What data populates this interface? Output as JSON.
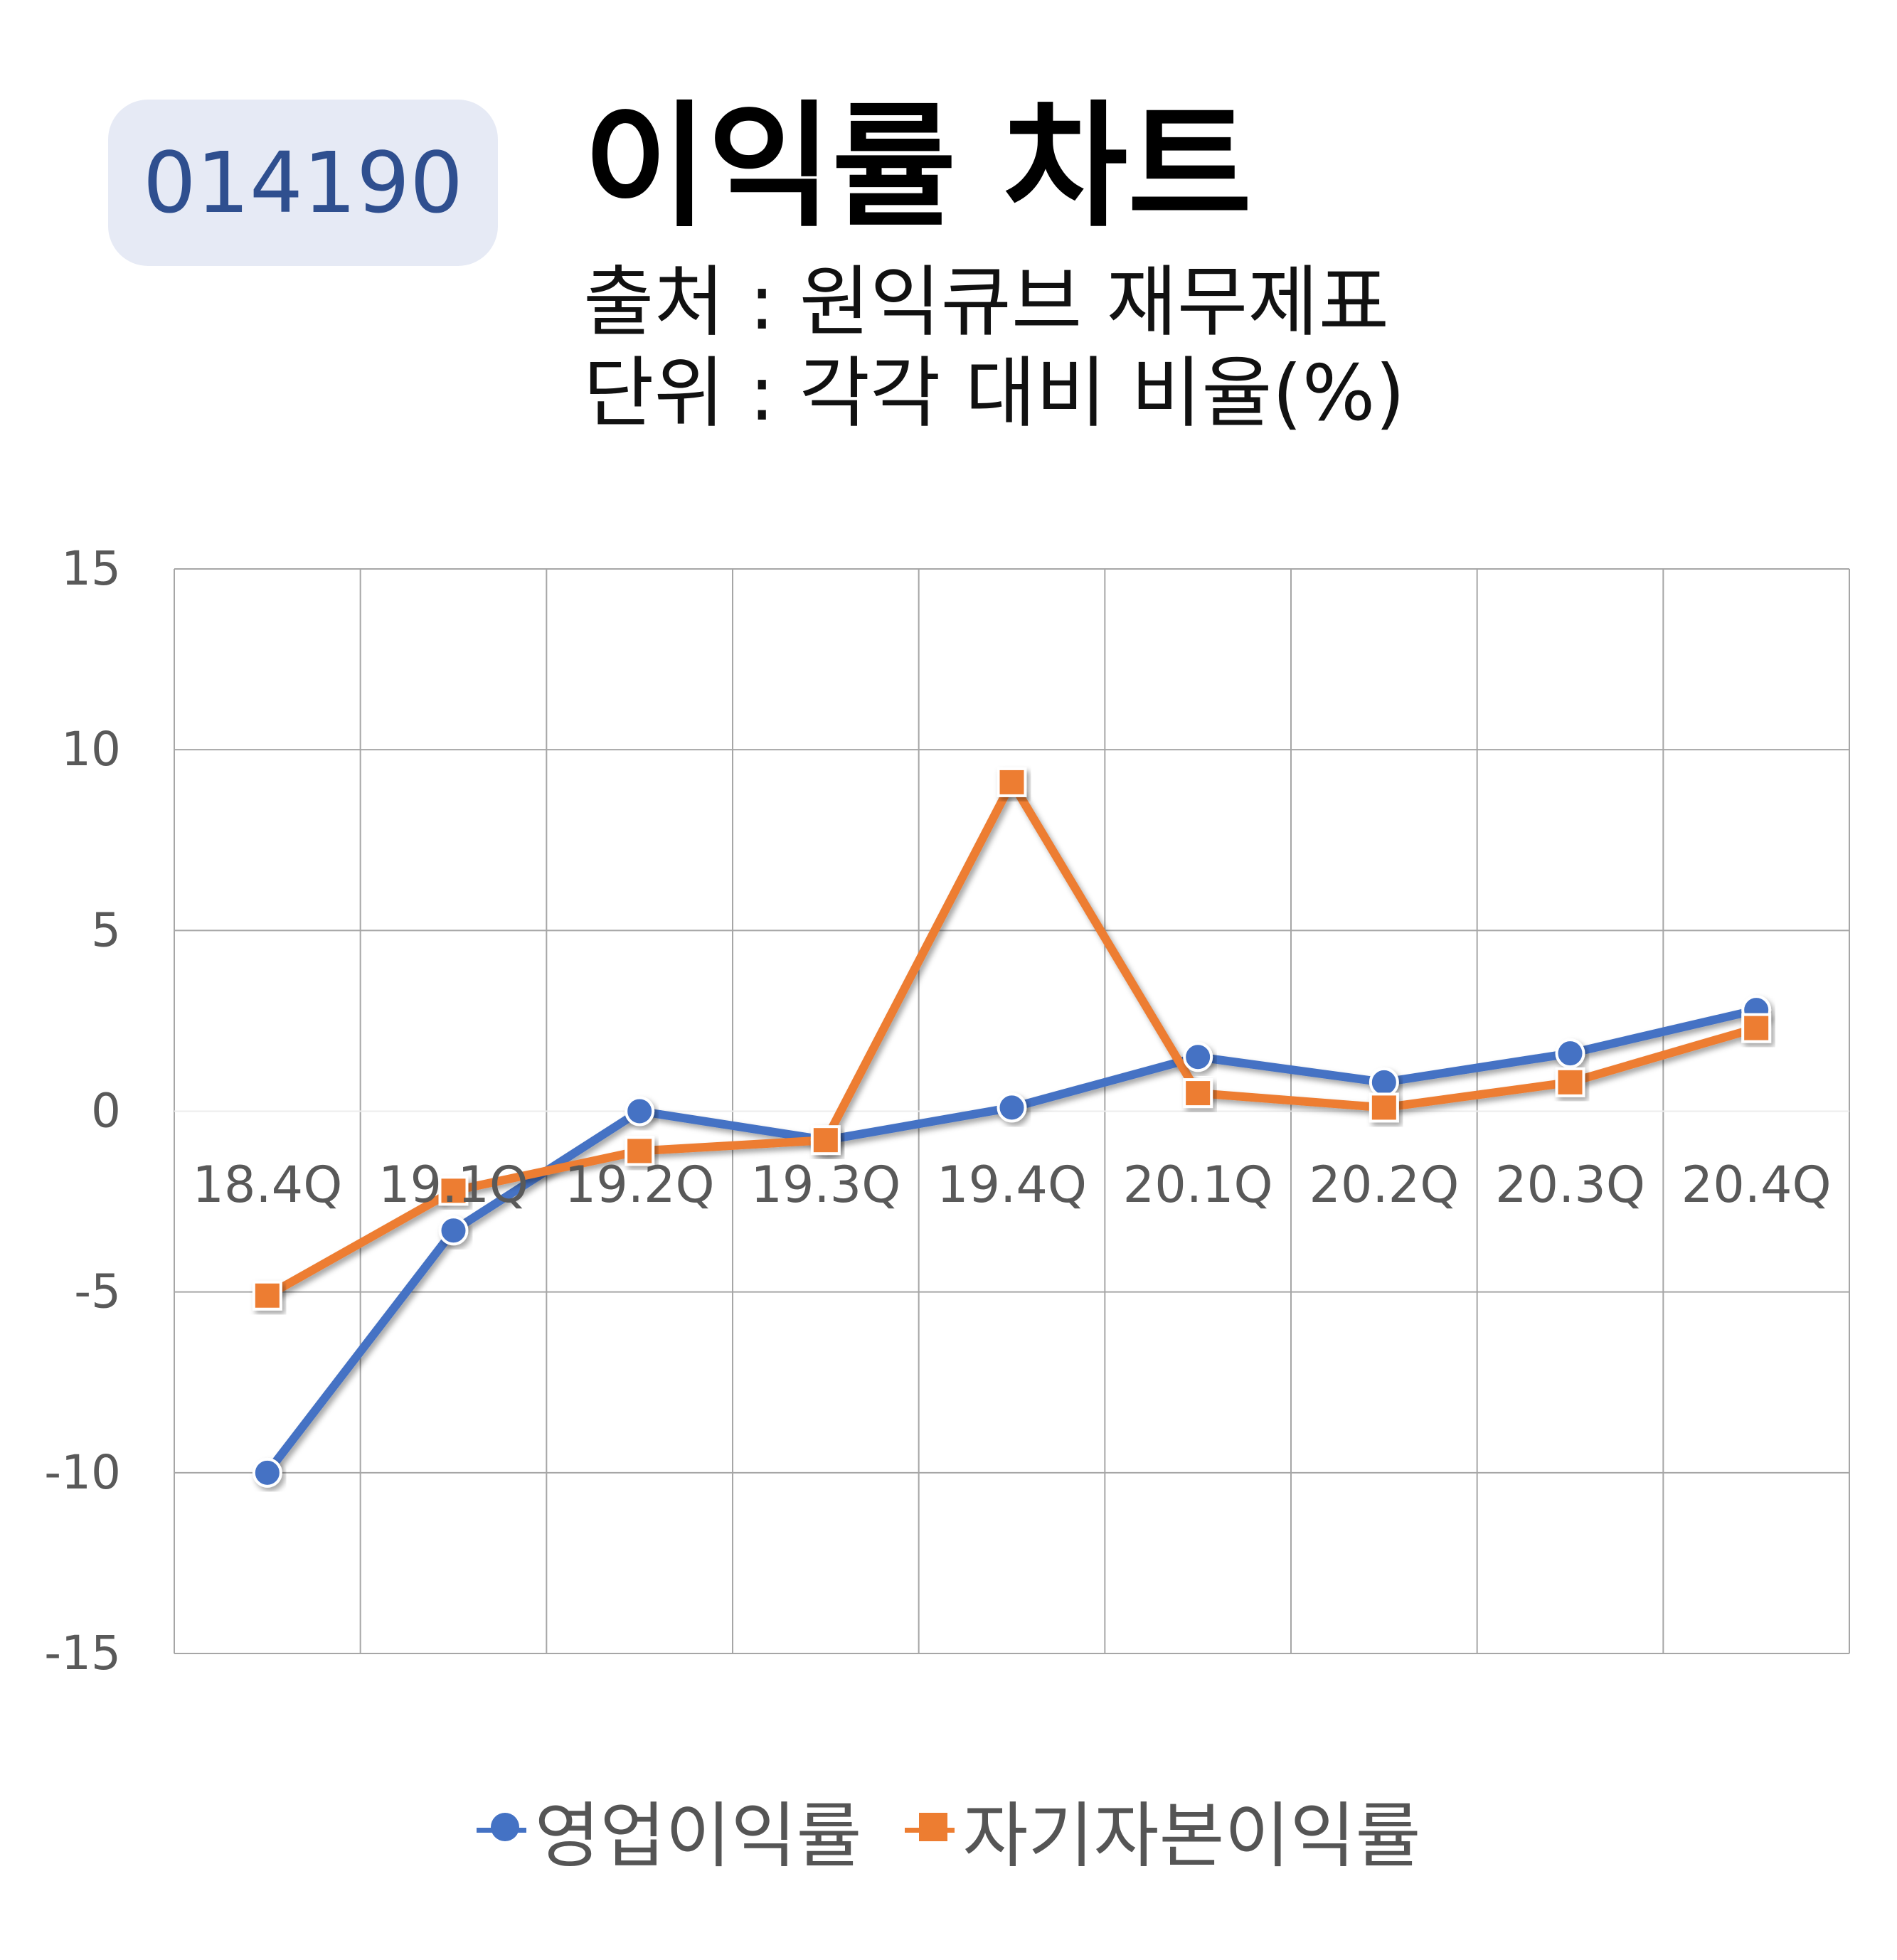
{
  "header": {
    "code": "014190",
    "title": "이익률 차트",
    "source": "출처 : 원익큐브 재무제표",
    "unit": "단위 : 각각 대비 비율(%)"
  },
  "chart_data": {
    "type": "line",
    "categories": [
      "18.4Q",
      "19.1Q",
      "19.2Q",
      "19.3Q",
      "19.4Q",
      "20.1Q",
      "20.2Q",
      "20.3Q",
      "20.4Q"
    ],
    "y_ticks": [
      "15",
      "10",
      "5",
      "0",
      "-5",
      "-10",
      "-15"
    ],
    "ylim": [
      -15,
      15
    ],
    "grid": true,
    "legend_position": "bottom",
    "series": [
      {
        "name": "영업이익률",
        "marker": "circle",
        "color": "#4472c4",
        "values": [
          -10.0,
          -3.3,
          0.0,
          -0.8,
          0.1,
          1.5,
          0.8,
          1.6,
          2.8
        ]
      },
      {
        "name": "자기자본이익률",
        "marker": "square",
        "color": "#ed7d31",
        "values": [
          -5.1,
          -2.2,
          -1.1,
          -0.8,
          9.1,
          0.5,
          0.1,
          0.8,
          2.3
        ]
      }
    ]
  }
}
